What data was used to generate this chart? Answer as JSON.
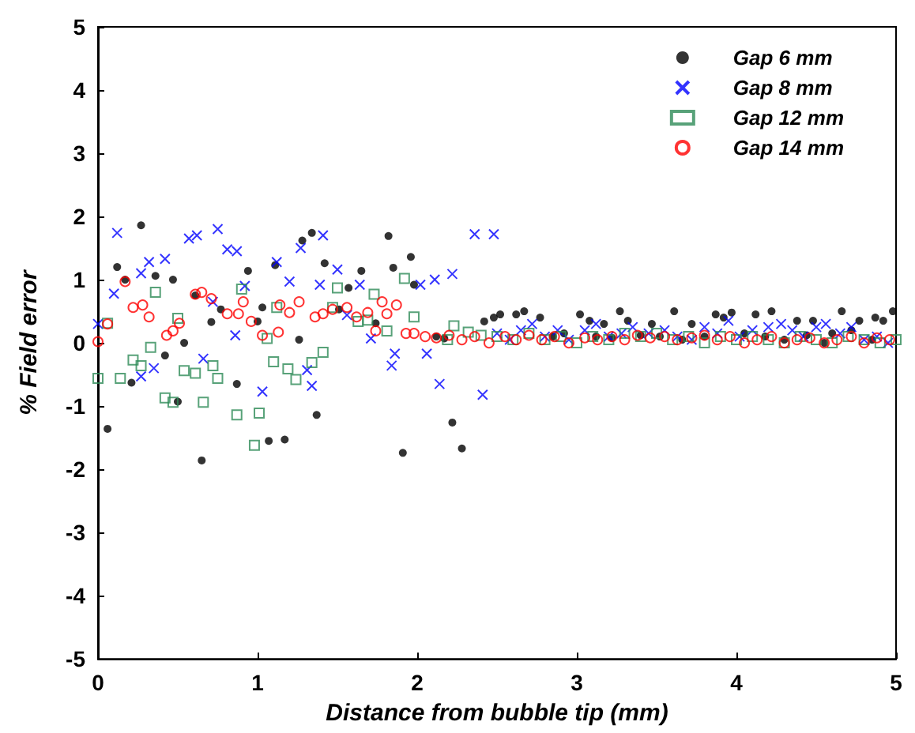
{
  "chart_data": {
    "type": "scatter",
    "xlabel": "Distance from bubble tip (mm)",
    "ylabel": "% Field error",
    "xlim": [
      0,
      5
    ],
    "xticks": [
      0,
      1,
      2,
      3,
      4,
      5
    ],
    "ylim": [
      -5,
      5
    ],
    "yticks": [
      -5,
      -4,
      -3,
      -2,
      -1,
      0,
      1,
      2,
      3,
      4,
      5
    ],
    "grid": false,
    "legend": "top right",
    "series": [
      {
        "name": "Gap 6 mm",
        "color": "#000000",
        "marker": "circle",
        "x": [
          0.06,
          0.12,
          0.17,
          0.21,
          0.27,
          0.36,
          0.42,
          0.47,
          0.5,
          0.54,
          0.61,
          0.65,
          0.71,
          0.77,
          0.87,
          0.94,
          1.0,
          1.03,
          1.07,
          1.11,
          1.17,
          1.26,
          1.28,
          1.34,
          1.37,
          1.42,
          1.51,
          1.57,
          1.65,
          1.74,
          1.82,
          1.85,
          1.91,
          1.96,
          1.98,
          2.12,
          2.17,
          2.22,
          2.28,
          2.42,
          2.48,
          2.52,
          2.62,
          2.67,
          2.77,
          2.85,
          2.92,
          3.02,
          3.08,
          3.12,
          3.17,
          3.22,
          3.27,
          3.32,
          3.4,
          3.47,
          3.52,
          3.61,
          3.66,
          3.72,
          3.8,
          3.87,
          3.92,
          3.97,
          4.05,
          4.12,
          4.18,
          4.22,
          4.3,
          4.38,
          4.44,
          4.48,
          4.55,
          4.6,
          4.66,
          4.72,
          4.77,
          4.85,
          4.87,
          4.92,
          4.98
        ],
        "values": [
          -1.36,
          1.2,
          1.0,
          -0.63,
          1.86,
          1.06,
          -0.2,
          1.0,
          -0.93,
          0.0,
          0.75,
          -1.86,
          0.33,
          0.53,
          -0.65,
          1.14,
          0.34,
          0.56,
          -1.55,
          1.23,
          -1.53,
          0.05,
          1.62,
          1.74,
          -1.14,
          1.26,
          0.53,
          0.87,
          1.14,
          0.31,
          1.69,
          1.19,
          -1.74,
          1.36,
          0.92,
          0.1,
          0.07,
          -1.26,
          -1.67,
          0.34,
          0.4,
          0.45,
          0.45,
          0.5,
          0.4,
          0.1,
          0.15,
          0.45,
          0.35,
          0.1,
          0.3,
          0.08,
          0.5,
          0.35,
          0.12,
          0.3,
          0.1,
          0.5,
          0.05,
          0.3,
          0.1,
          0.45,
          0.4,
          0.48,
          0.15,
          0.45,
          0.1,
          0.5,
          0.05,
          0.35,
          0.12,
          0.35,
          0.0,
          0.15,
          0.5,
          0.2,
          0.35,
          0.05,
          0.4,
          0.35,
          0.5
        ]
      },
      {
        "name": "Gap 8 mm",
        "color": "#0000ff",
        "marker": "cross",
        "x": [
          0.0,
          0.1,
          0.12,
          0.27,
          0.32,
          0.42,
          0.27,
          0.35,
          0.57,
          0.62,
          0.75,
          0.81,
          0.87,
          0.72,
          0.66,
          0.86,
          0.92,
          1.03,
          1.12,
          1.2,
          1.27,
          1.31,
          1.34,
          1.41,
          1.39,
          1.5,
          1.56,
          1.64,
          1.71,
          1.84,
          1.86,
          2.02,
          2.06,
          2.11,
          2.14,
          2.22,
          2.36,
          2.48,
          2.41,
          2.5,
          2.58,
          2.65,
          2.72,
          2.8,
          2.88,
          2.95,
          3.05,
          3.12,
          3.2,
          3.28,
          3.35,
          3.45,
          3.55,
          3.63,
          3.72,
          3.8,
          3.88,
          3.95,
          4.02,
          4.1,
          4.2,
          4.28,
          4.35,
          4.42,
          4.5,
          4.56,
          4.65,
          4.72,
          4.8,
          4.88,
          4.95
        ],
        "values": [
          0.3,
          0.78,
          1.74,
          1.1,
          1.28,
          1.33,
          -0.53,
          -0.4,
          1.65,
          1.7,
          1.8,
          1.48,
          1.45,
          0.65,
          -0.25,
          0.12,
          0.9,
          -0.77,
          1.28,
          0.97,
          1.5,
          -0.43,
          -0.68,
          1.7,
          0.92,
          1.16,
          0.44,
          0.92,
          0.07,
          -0.36,
          -0.17,
          0.92,
          -0.17,
          1.0,
          -0.65,
          1.09,
          1.72,
          1.72,
          -0.82,
          0.15,
          0.05,
          0.2,
          0.3,
          0.1,
          0.2,
          0.05,
          0.2,
          0.3,
          0.1,
          0.15,
          0.25,
          0.15,
          0.2,
          0.1,
          0.05,
          0.25,
          0.15,
          0.35,
          0.1,
          0.2,
          0.25,
          0.3,
          0.2,
          0.1,
          0.25,
          0.3,
          0.15,
          0.25,
          0.05,
          0.1,
          0.0
        ]
      },
      {
        "name": "Gap 12 mm",
        "color": "#2e8b57",
        "marker": "square",
        "x": [
          0.0,
          0.06,
          0.14,
          0.22,
          0.27,
          0.33,
          0.36,
          0.42,
          0.47,
          0.5,
          0.54,
          0.61,
          0.66,
          0.72,
          0.75,
          0.87,
          0.9,
          0.98,
          1.01,
          1.06,
          1.1,
          1.12,
          1.19,
          1.24,
          1.34,
          1.41,
          1.47,
          1.5,
          1.63,
          1.69,
          1.73,
          1.81,
          1.92,
          1.98,
          2.19,
          2.23,
          2.32,
          2.4,
          2.5,
          2.6,
          2.7,
          2.8,
          2.9,
          3.0,
          3.1,
          3.2,
          3.3,
          3.4,
          3.5,
          3.6,
          3.7,
          3.8,
          3.9,
          4.0,
          4.1,
          4.2,
          4.3,
          4.4,
          4.5,
          4.6,
          4.7,
          4.8,
          4.9,
          5.0
        ],
        "values": [
          -0.56,
          0.31,
          -0.56,
          -0.27,
          -0.36,
          -0.07,
          0.8,
          -0.87,
          -0.94,
          0.39,
          -0.44,
          -0.48,
          -0.94,
          -0.36,
          -0.56,
          -1.14,
          0.85,
          -1.62,
          -1.11,
          0.07,
          -0.3,
          0.56,
          -0.41,
          -0.58,
          -0.31,
          -0.15,
          0.56,
          0.87,
          0.34,
          0.36,
          0.77,
          0.19,
          1.02,
          0.41,
          0.05,
          0.27,
          0.17,
          0.12,
          0.1,
          0.05,
          0.15,
          0.05,
          0.1,
          0.0,
          0.1,
          0.05,
          0.15,
          0.1,
          0.15,
          0.05,
          0.1,
          0.0,
          0.1,
          0.05,
          0.1,
          0.05,
          0.0,
          0.1,
          0.05,
          0.0,
          0.1,
          0.05,
          0.0,
          0.05
        ]
      },
      {
        "name": "Gap 14 mm",
        "color": "#ff0000",
        "marker": "circle-open",
        "x": [
          0.0,
          0.06,
          0.17,
          0.22,
          0.28,
          0.32,
          0.43,
          0.47,
          0.51,
          0.61,
          0.65,
          0.71,
          0.81,
          0.88,
          0.91,
          0.96,
          1.03,
          1.13,
          1.14,
          1.2,
          1.26,
          1.36,
          1.41,
          1.47,
          1.56,
          1.62,
          1.69,
          1.74,
          1.78,
          1.81,
          1.87,
          1.93,
          1.98,
          2.05,
          2.12,
          2.2,
          2.28,
          2.36,
          2.45,
          2.55,
          2.62,
          2.7,
          2.78,
          2.86,
          2.95,
          3.05,
          3.13,
          3.22,
          3.3,
          3.38,
          3.46,
          3.55,
          3.63,
          3.72,
          3.8,
          3.88,
          3.96,
          4.05,
          4.13,
          4.22,
          4.3,
          4.38,
          4.46,
          4.55,
          4.63,
          4.72,
          4.8,
          4.88,
          4.96
        ],
        "values": [
          0.02,
          0.3,
          0.97,
          0.56,
          0.6,
          0.41,
          0.12,
          0.19,
          0.31,
          0.77,
          0.8,
          0.7,
          0.46,
          0.46,
          0.65,
          0.34,
          0.12,
          0.17,
          0.6,
          0.48,
          0.65,
          0.41,
          0.46,
          0.53,
          0.56,
          0.41,
          0.48,
          0.19,
          0.65,
          0.46,
          0.6,
          0.15,
          0.15,
          0.1,
          0.08,
          0.12,
          0.05,
          0.1,
          0.0,
          0.1,
          0.05,
          0.12,
          0.05,
          0.1,
          0.0,
          0.08,
          0.05,
          0.1,
          0.05,
          0.12,
          0.08,
          0.1,
          0.05,
          0.08,
          0.12,
          0.05,
          0.1,
          0.0,
          0.05,
          0.1,
          0.0,
          0.05,
          0.08,
          0.0,
          0.05,
          0.1,
          0.0,
          0.08,
          0.05
        ]
      }
    ]
  }
}
